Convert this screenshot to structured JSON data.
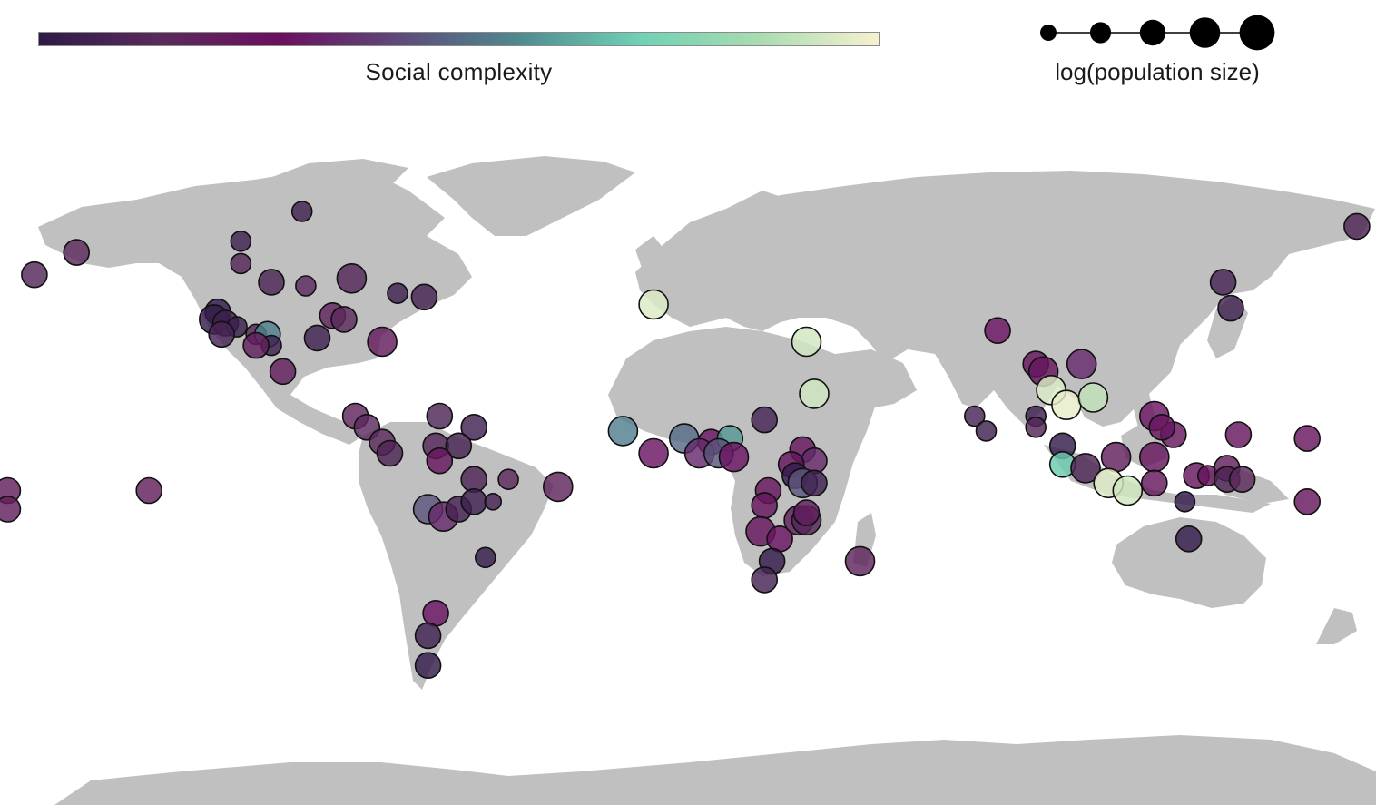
{
  "legend": {
    "colorbar_label": "Social complexity",
    "size_label": "log(population size)",
    "size_steps": 5
  },
  "colors": {
    "land": "#c0c0c0",
    "background": "#ffffff",
    "point_stroke": "#111111",
    "colormap": [
      "#2e1a47",
      "#5a2a5c",
      "#6b0f5e",
      "#5e4a7a",
      "#4f8a8f",
      "#6fd1b4",
      "#a8dcb0",
      "#f6f1cf"
    ]
  },
  "societies": [
    {
      "lon": -160,
      "lat": 59,
      "c": 0.15,
      "s": 0.6
    },
    {
      "lon": -171,
      "lat": 53,
      "c": 0.12,
      "s": 0.6
    },
    {
      "lon": -101,
      "lat": 70,
      "c": 0.06,
      "s": 0.3
    },
    {
      "lon": -117,
      "lat": 62,
      "c": 0.06,
      "s": 0.3
    },
    {
      "lon": -117,
      "lat": 56,
      "c": 0.12,
      "s": 0.3
    },
    {
      "lon": -109,
      "lat": 51,
      "c": 0.1,
      "s": 0.6
    },
    {
      "lon": -100,
      "lat": 50,
      "c": 0.15,
      "s": 0.3
    },
    {
      "lon": -88,
      "lat": 52,
      "c": 0.12,
      "s": 0.8
    },
    {
      "lon": -76,
      "lat": 48,
      "c": 0.06,
      "s": 0.3
    },
    {
      "lon": -69,
      "lat": 47,
      "c": 0.07,
      "s": 0.6
    },
    {
      "lon": -123,
      "lat": 43,
      "c": 0.02,
      "s": 0.6
    },
    {
      "lon": -124,
      "lat": 41,
      "c": 0.02,
      "s": 0.8
    },
    {
      "lon": -121,
      "lat": 40,
      "c": 0.05,
      "s": 0.6
    },
    {
      "lon": -118,
      "lat": 39,
      "c": 0.04,
      "s": 0.3
    },
    {
      "lon": -122,
      "lat": 37,
      "c": 0.08,
      "s": 0.6
    },
    {
      "lon": -113,
      "lat": 37,
      "c": 0.12,
      "s": 0.3
    },
    {
      "lon": -110,
      "lat": 37,
      "c": 0.55,
      "s": 0.6
    },
    {
      "lon": -109,
      "lat": 34,
      "c": 0.05,
      "s": 0.3
    },
    {
      "lon": -113,
      "lat": 34,
      "c": 0.2,
      "s": 0.6
    },
    {
      "lon": -93,
      "lat": 42,
      "c": 0.18,
      "s": 0.6
    },
    {
      "lon": -90,
      "lat": 41,
      "c": 0.15,
      "s": 0.6
    },
    {
      "lon": -97,
      "lat": 36,
      "c": 0.06,
      "s": 0.6
    },
    {
      "lon": -80,
      "lat": 35,
      "c": 0.22,
      "s": 0.8
    },
    {
      "lon": -106,
      "lat": 27,
      "c": 0.2,
      "s": 0.6
    },
    {
      "lon": -87,
      "lat": 15,
      "c": 0.18,
      "s": 0.6
    },
    {
      "lon": -84,
      "lat": 12,
      "c": 0.15,
      "s": 0.6
    },
    {
      "lon": -65,
      "lat": 15,
      "c": 0.1,
      "s": 0.6
    },
    {
      "lon": -56,
      "lat": 12,
      "c": 0.06,
      "s": 0.6
    },
    {
      "lon": -80,
      "lat": 8,
      "c": 0.15,
      "s": 0.6
    },
    {
      "lon": -78,
      "lat": 5,
      "c": 0.1,
      "s": 0.6
    },
    {
      "lon": -66,
      "lat": 7,
      "c": 0.12,
      "s": 0.6
    },
    {
      "lon": -60,
      "lat": 7,
      "c": 0.07,
      "s": 0.6
    },
    {
      "lon": -65,
      "lat": 3,
      "c": 0.25,
      "s": 0.6
    },
    {
      "lon": -56,
      "lat": -2,
      "c": 0.1,
      "s": 0.6
    },
    {
      "lon": -47,
      "lat": -2,
      "c": 0.15,
      "s": 0.3
    },
    {
      "lon": -34,
      "lat": -4,
      "c": 0.18,
      "s": 0.8
    },
    {
      "lon": -68,
      "lat": -10,
      "c": 0.45,
      "s": 0.8
    },
    {
      "lon": -64,
      "lat": -12,
      "c": 0.35,
      "s": 0.8
    },
    {
      "lon": -60,
      "lat": -10,
      "c": 0.07,
      "s": 0.6
    },
    {
      "lon": -56,
      "lat": -8,
      "c": 0.06,
      "s": 0.6
    },
    {
      "lon": -51,
      "lat": -8,
      "c": 0.08,
      "s": 0.1
    },
    {
      "lon": -53,
      "lat": -23,
      "c": 0.03,
      "s": 0.3
    },
    {
      "lon": -66,
      "lat": -38,
      "c": 0.3,
      "s": 0.6
    },
    {
      "lon": -68,
      "lat": -44,
      "c": 0.06,
      "s": 0.6
    },
    {
      "lon": -68,
      "lat": -52,
      "c": 0.02,
      "s": 0.6
    },
    {
      "lon": -178,
      "lat": -5,
      "c": 0.2,
      "s": 0.6
    },
    {
      "lon": -178,
      "lat": -10,
      "c": 0.2,
      "s": 0.6
    },
    {
      "lon": -141,
      "lat": -5,
      "c": 0.2,
      "s": 0.6
    },
    {
      "lon": -9,
      "lat": 45,
      "c": 0.95,
      "s": 0.8
    },
    {
      "lon": 31,
      "lat": 35,
      "c": 0.93,
      "s": 0.8
    },
    {
      "lon": 33,
      "lat": 21,
      "c": 0.93,
      "s": 0.8
    },
    {
      "lon": 20,
      "lat": 14,
      "c": 0.08,
      "s": 0.6
    },
    {
      "lon": -17,
      "lat": 11,
      "c": 0.55,
      "s": 0.8
    },
    {
      "lon": -9,
      "lat": 5,
      "c": 0.3,
      "s": 0.8
    },
    {
      "lon": -1,
      "lat": 9,
      "c": 0.5,
      "s": 0.8
    },
    {
      "lon": 6,
      "lat": 8,
      "c": 0.3,
      "s": 0.6
    },
    {
      "lon": 11,
      "lat": 9,
      "c": 0.6,
      "s": 0.6
    },
    {
      "lon": 3,
      "lat": 5,
      "c": 0.35,
      "s": 0.8
    },
    {
      "lon": 8,
      "lat": 5,
      "c": 0.45,
      "s": 0.8
    },
    {
      "lon": 12,
      "lat": 4,
      "c": 0.3,
      "s": 0.8
    },
    {
      "lon": 30,
      "lat": 6,
      "c": 0.25,
      "s": 0.6
    },
    {
      "lon": 33,
      "lat": 3,
      "c": 0.35,
      "s": 0.6
    },
    {
      "lon": 27,
      "lat": 2,
      "c": 0.25,
      "s": 0.6
    },
    {
      "lon": 28,
      "lat": -1,
      "c": 0.02,
      "s": 0.6
    },
    {
      "lon": 30,
      "lat": -3,
      "c": 0.45,
      "s": 0.8
    },
    {
      "lon": 33,
      "lat": -3,
      "c": 0.06,
      "s": 0.6
    },
    {
      "lon": 21,
      "lat": -5,
      "c": 0.25,
      "s": 0.6
    },
    {
      "lon": 20,
      "lat": -9,
      "c": 0.25,
      "s": 0.6
    },
    {
      "lon": 19,
      "lat": -16,
      "c": 0.25,
      "s": 0.8
    },
    {
      "lon": 24,
      "lat": -18,
      "c": 0.3,
      "s": 0.6
    },
    {
      "lon": 29,
      "lat": -13,
      "c": 0.2,
      "s": 0.8
    },
    {
      "lon": 31,
      "lat": -13,
      "c": 0.12,
      "s": 0.8
    },
    {
      "lon": 31,
      "lat": -11,
      "c": 0.2,
      "s": 0.6
    },
    {
      "lon": 22,
      "lat": -24,
      "c": 0.02,
      "s": 0.6
    },
    {
      "lon": 20,
      "lat": -29,
      "c": 0.08,
      "s": 0.6
    },
    {
      "lon": 45,
      "lat": -24,
      "c": 0.18,
      "s": 0.8
    },
    {
      "lon": 175,
      "lat": 66,
      "c": 0.1,
      "s": 0.6
    },
    {
      "lon": 140,
      "lat": 51,
      "c": 0.08,
      "s": 0.6
    },
    {
      "lon": 142,
      "lat": 44,
      "c": 0.06,
      "s": 0.6
    },
    {
      "lon": 81,
      "lat": 38,
      "c": 0.3,
      "s": 0.6
    },
    {
      "lon": 91,
      "lat": 29,
      "c": 0.25,
      "s": 0.6
    },
    {
      "lon": 93,
      "lat": 27,
      "c": 0.25,
      "s": 0.8
    },
    {
      "lon": 103,
      "lat": 29,
      "c": 0.35,
      "s": 0.8
    },
    {
      "lon": 95,
      "lat": 22,
      "c": 0.95,
      "s": 0.8
    },
    {
      "lon": 99,
      "lat": 18,
      "c": 0.97,
      "s": 0.8
    },
    {
      "lon": 106,
      "lat": 20,
      "c": 0.9,
      "s": 0.8
    },
    {
      "lon": 75,
      "lat": 15,
      "c": 0.08,
      "s": 0.3
    },
    {
      "lon": 78,
      "lat": 11,
      "c": 0.06,
      "s": 0.3
    },
    {
      "lon": 91,
      "lat": 15,
      "c": 0.05,
      "s": 0.3
    },
    {
      "lon": 91,
      "lat": 12,
      "c": 0.12,
      "s": 0.3
    },
    {
      "lon": 98,
      "lat": 7,
      "c": 0.02,
      "s": 0.6
    },
    {
      "lon": 98,
      "lat": 2,
      "c": 0.7,
      "s": 0.6
    },
    {
      "lon": 104,
      "lat": 1,
      "c": 0.1,
      "s": 0.8
    },
    {
      "lon": 112,
      "lat": 4,
      "c": 0.2,
      "s": 0.8
    },
    {
      "lon": 122,
      "lat": 15,
      "c": 0.3,
      "s": 0.8
    },
    {
      "lon": 127,
      "lat": 10,
      "c": 0.25,
      "s": 0.6
    },
    {
      "lon": 124,
      "lat": 12,
      "c": 0.25,
      "s": 0.6
    },
    {
      "lon": 122,
      "lat": 4,
      "c": 0.25,
      "s": 0.8
    },
    {
      "lon": 110,
      "lat": -3,
      "c": 0.96,
      "s": 0.8
    },
    {
      "lon": 115,
      "lat": -5,
      "c": 0.93,
      "s": 0.8
    },
    {
      "lon": 122,
      "lat": -3,
      "c": 0.25,
      "s": 0.6
    },
    {
      "lon": 133,
      "lat": -1,
      "c": 0.25,
      "s": 0.6
    },
    {
      "lon": 136,
      "lat": -1,
      "c": 0.25,
      "s": 0.3
    },
    {
      "lon": 141,
      "lat": 1,
      "c": 0.2,
      "s": 0.6
    },
    {
      "lon": 141,
      "lat": -2,
      "c": 0.1,
      "s": 0.6
    },
    {
      "lon": 145,
      "lat": -2,
      "c": 0.15,
      "s": 0.6
    },
    {
      "lon": 144,
      "lat": 10,
      "c": 0.25,
      "s": 0.6
    },
    {
      "lon": 162,
      "lat": 9,
      "c": 0.25,
      "s": 0.6
    },
    {
      "lon": 162,
      "lat": -8,
      "c": 0.25,
      "s": 0.6
    },
    {
      "lon": 130,
      "lat": -8,
      "c": 0.02,
      "s": 0.3
    },
    {
      "lon": 131,
      "lat": -18,
      "c": 0.02,
      "s": 0.6
    }
  ]
}
